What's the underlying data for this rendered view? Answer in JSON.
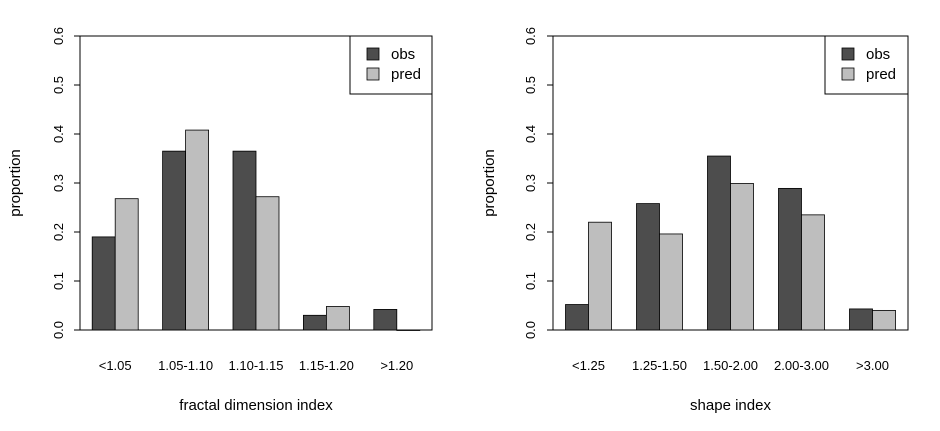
{
  "colors": {
    "obs": "#4d4d4d",
    "pred": "#bebebe",
    "axis": "#000000"
  },
  "chart_data": [
    {
      "type": "bar",
      "title": "",
      "xlabel": "fractal dimension index",
      "ylabel": "proportion",
      "ylim": [
        0,
        0.6
      ],
      "yticks": [
        "0.0",
        "0.1",
        "0.2",
        "0.3",
        "0.4",
        "0.5",
        "0.6"
      ],
      "categories": [
        "<1.05",
        "1.05-1.10",
        "1.10-1.15",
        "1.15-1.20",
        ">1.20"
      ],
      "legend": {
        "position": "top-right",
        "entries": [
          "obs",
          "pred"
        ]
      },
      "grid": false,
      "series": [
        {
          "name": "obs",
          "values": [
            0.19,
            0.365,
            0.365,
            0.03,
            0.042
          ]
        },
        {
          "name": "pred",
          "values": [
            0.268,
            0.408,
            0.272,
            0.048,
            0.0
          ]
        }
      ]
    },
    {
      "type": "bar",
      "title": "",
      "xlabel": "shape index",
      "ylabel": "proportion",
      "ylim": [
        0,
        0.6
      ],
      "yticks": [
        "0.0",
        "0.1",
        "0.2",
        "0.3",
        "0.4",
        "0.5",
        "0.6"
      ],
      "categories": [
        "<1.25",
        "1.25-1.50",
        "1.50-2.00",
        "2.00-3.00",
        ">3.00"
      ],
      "legend": {
        "position": "top-right",
        "entries": [
          "obs",
          "pred"
        ]
      },
      "grid": false,
      "series": [
        {
          "name": "obs",
          "values": [
            0.052,
            0.258,
            0.355,
            0.289,
            0.043
          ]
        },
        {
          "name": "pred",
          "values": [
            0.22,
            0.196,
            0.299,
            0.235,
            0.04
          ]
        }
      ]
    }
  ]
}
